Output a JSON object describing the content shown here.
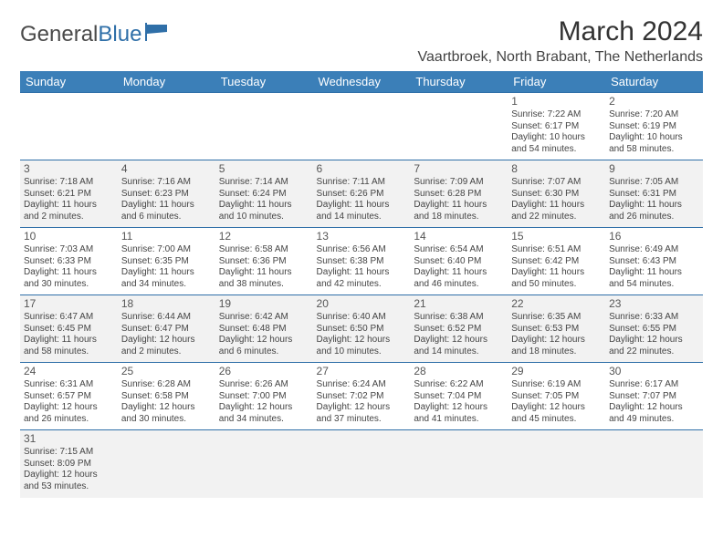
{
  "logo": {
    "text1": "General",
    "text2": "Blue"
  },
  "title": "March 2024",
  "location": "Vaartbroek, North Brabant, The Netherlands",
  "colors": {
    "header_bg": "#3b7fb8",
    "header_fg": "#ffffff",
    "border": "#2f6fa8",
    "alt_row": "#f2f2f2",
    "text": "#3a3a3a"
  },
  "weekdays": [
    "Sunday",
    "Monday",
    "Tuesday",
    "Wednesday",
    "Thursday",
    "Friday",
    "Saturday"
  ],
  "weeks": [
    [
      null,
      null,
      null,
      null,
      null,
      {
        "n": "1",
        "sr": "7:22 AM",
        "ss": "6:17 PM",
        "dl": "10 hours and 54 minutes."
      },
      {
        "n": "2",
        "sr": "7:20 AM",
        "ss": "6:19 PM",
        "dl": "10 hours and 58 minutes."
      }
    ],
    [
      {
        "n": "3",
        "sr": "7:18 AM",
        "ss": "6:21 PM",
        "dl": "11 hours and 2 minutes."
      },
      {
        "n": "4",
        "sr": "7:16 AM",
        "ss": "6:23 PM",
        "dl": "11 hours and 6 minutes."
      },
      {
        "n": "5",
        "sr": "7:14 AM",
        "ss": "6:24 PM",
        "dl": "11 hours and 10 minutes."
      },
      {
        "n": "6",
        "sr": "7:11 AM",
        "ss": "6:26 PM",
        "dl": "11 hours and 14 minutes."
      },
      {
        "n": "7",
        "sr": "7:09 AM",
        "ss": "6:28 PM",
        "dl": "11 hours and 18 minutes."
      },
      {
        "n": "8",
        "sr": "7:07 AM",
        "ss": "6:30 PM",
        "dl": "11 hours and 22 minutes."
      },
      {
        "n": "9",
        "sr": "7:05 AM",
        "ss": "6:31 PM",
        "dl": "11 hours and 26 minutes."
      }
    ],
    [
      {
        "n": "10",
        "sr": "7:03 AM",
        "ss": "6:33 PM",
        "dl": "11 hours and 30 minutes."
      },
      {
        "n": "11",
        "sr": "7:00 AM",
        "ss": "6:35 PM",
        "dl": "11 hours and 34 minutes."
      },
      {
        "n": "12",
        "sr": "6:58 AM",
        "ss": "6:36 PM",
        "dl": "11 hours and 38 minutes."
      },
      {
        "n": "13",
        "sr": "6:56 AM",
        "ss": "6:38 PM",
        "dl": "11 hours and 42 minutes."
      },
      {
        "n": "14",
        "sr": "6:54 AM",
        "ss": "6:40 PM",
        "dl": "11 hours and 46 minutes."
      },
      {
        "n": "15",
        "sr": "6:51 AM",
        "ss": "6:42 PM",
        "dl": "11 hours and 50 minutes."
      },
      {
        "n": "16",
        "sr": "6:49 AM",
        "ss": "6:43 PM",
        "dl": "11 hours and 54 minutes."
      }
    ],
    [
      {
        "n": "17",
        "sr": "6:47 AM",
        "ss": "6:45 PM",
        "dl": "11 hours and 58 minutes."
      },
      {
        "n": "18",
        "sr": "6:44 AM",
        "ss": "6:47 PM",
        "dl": "12 hours and 2 minutes."
      },
      {
        "n": "19",
        "sr": "6:42 AM",
        "ss": "6:48 PM",
        "dl": "12 hours and 6 minutes."
      },
      {
        "n": "20",
        "sr": "6:40 AM",
        "ss": "6:50 PM",
        "dl": "12 hours and 10 minutes."
      },
      {
        "n": "21",
        "sr": "6:38 AM",
        "ss": "6:52 PM",
        "dl": "12 hours and 14 minutes."
      },
      {
        "n": "22",
        "sr": "6:35 AM",
        "ss": "6:53 PM",
        "dl": "12 hours and 18 minutes."
      },
      {
        "n": "23",
        "sr": "6:33 AM",
        "ss": "6:55 PM",
        "dl": "12 hours and 22 minutes."
      }
    ],
    [
      {
        "n": "24",
        "sr": "6:31 AM",
        "ss": "6:57 PM",
        "dl": "12 hours and 26 minutes."
      },
      {
        "n": "25",
        "sr": "6:28 AM",
        "ss": "6:58 PM",
        "dl": "12 hours and 30 minutes."
      },
      {
        "n": "26",
        "sr": "6:26 AM",
        "ss": "7:00 PM",
        "dl": "12 hours and 34 minutes."
      },
      {
        "n": "27",
        "sr": "6:24 AM",
        "ss": "7:02 PM",
        "dl": "12 hours and 37 minutes."
      },
      {
        "n": "28",
        "sr": "6:22 AM",
        "ss": "7:04 PM",
        "dl": "12 hours and 41 minutes."
      },
      {
        "n": "29",
        "sr": "6:19 AM",
        "ss": "7:05 PM",
        "dl": "12 hours and 45 minutes."
      },
      {
        "n": "30",
        "sr": "6:17 AM",
        "ss": "7:07 PM",
        "dl": "12 hours and 49 minutes."
      }
    ],
    [
      {
        "n": "31",
        "sr": "7:15 AM",
        "ss": "8:09 PM",
        "dl": "12 hours and 53 minutes."
      },
      null,
      null,
      null,
      null,
      null,
      null
    ]
  ],
  "labels": {
    "sunrise": "Sunrise:",
    "sunset": "Sunset:",
    "daylight": "Daylight:"
  }
}
